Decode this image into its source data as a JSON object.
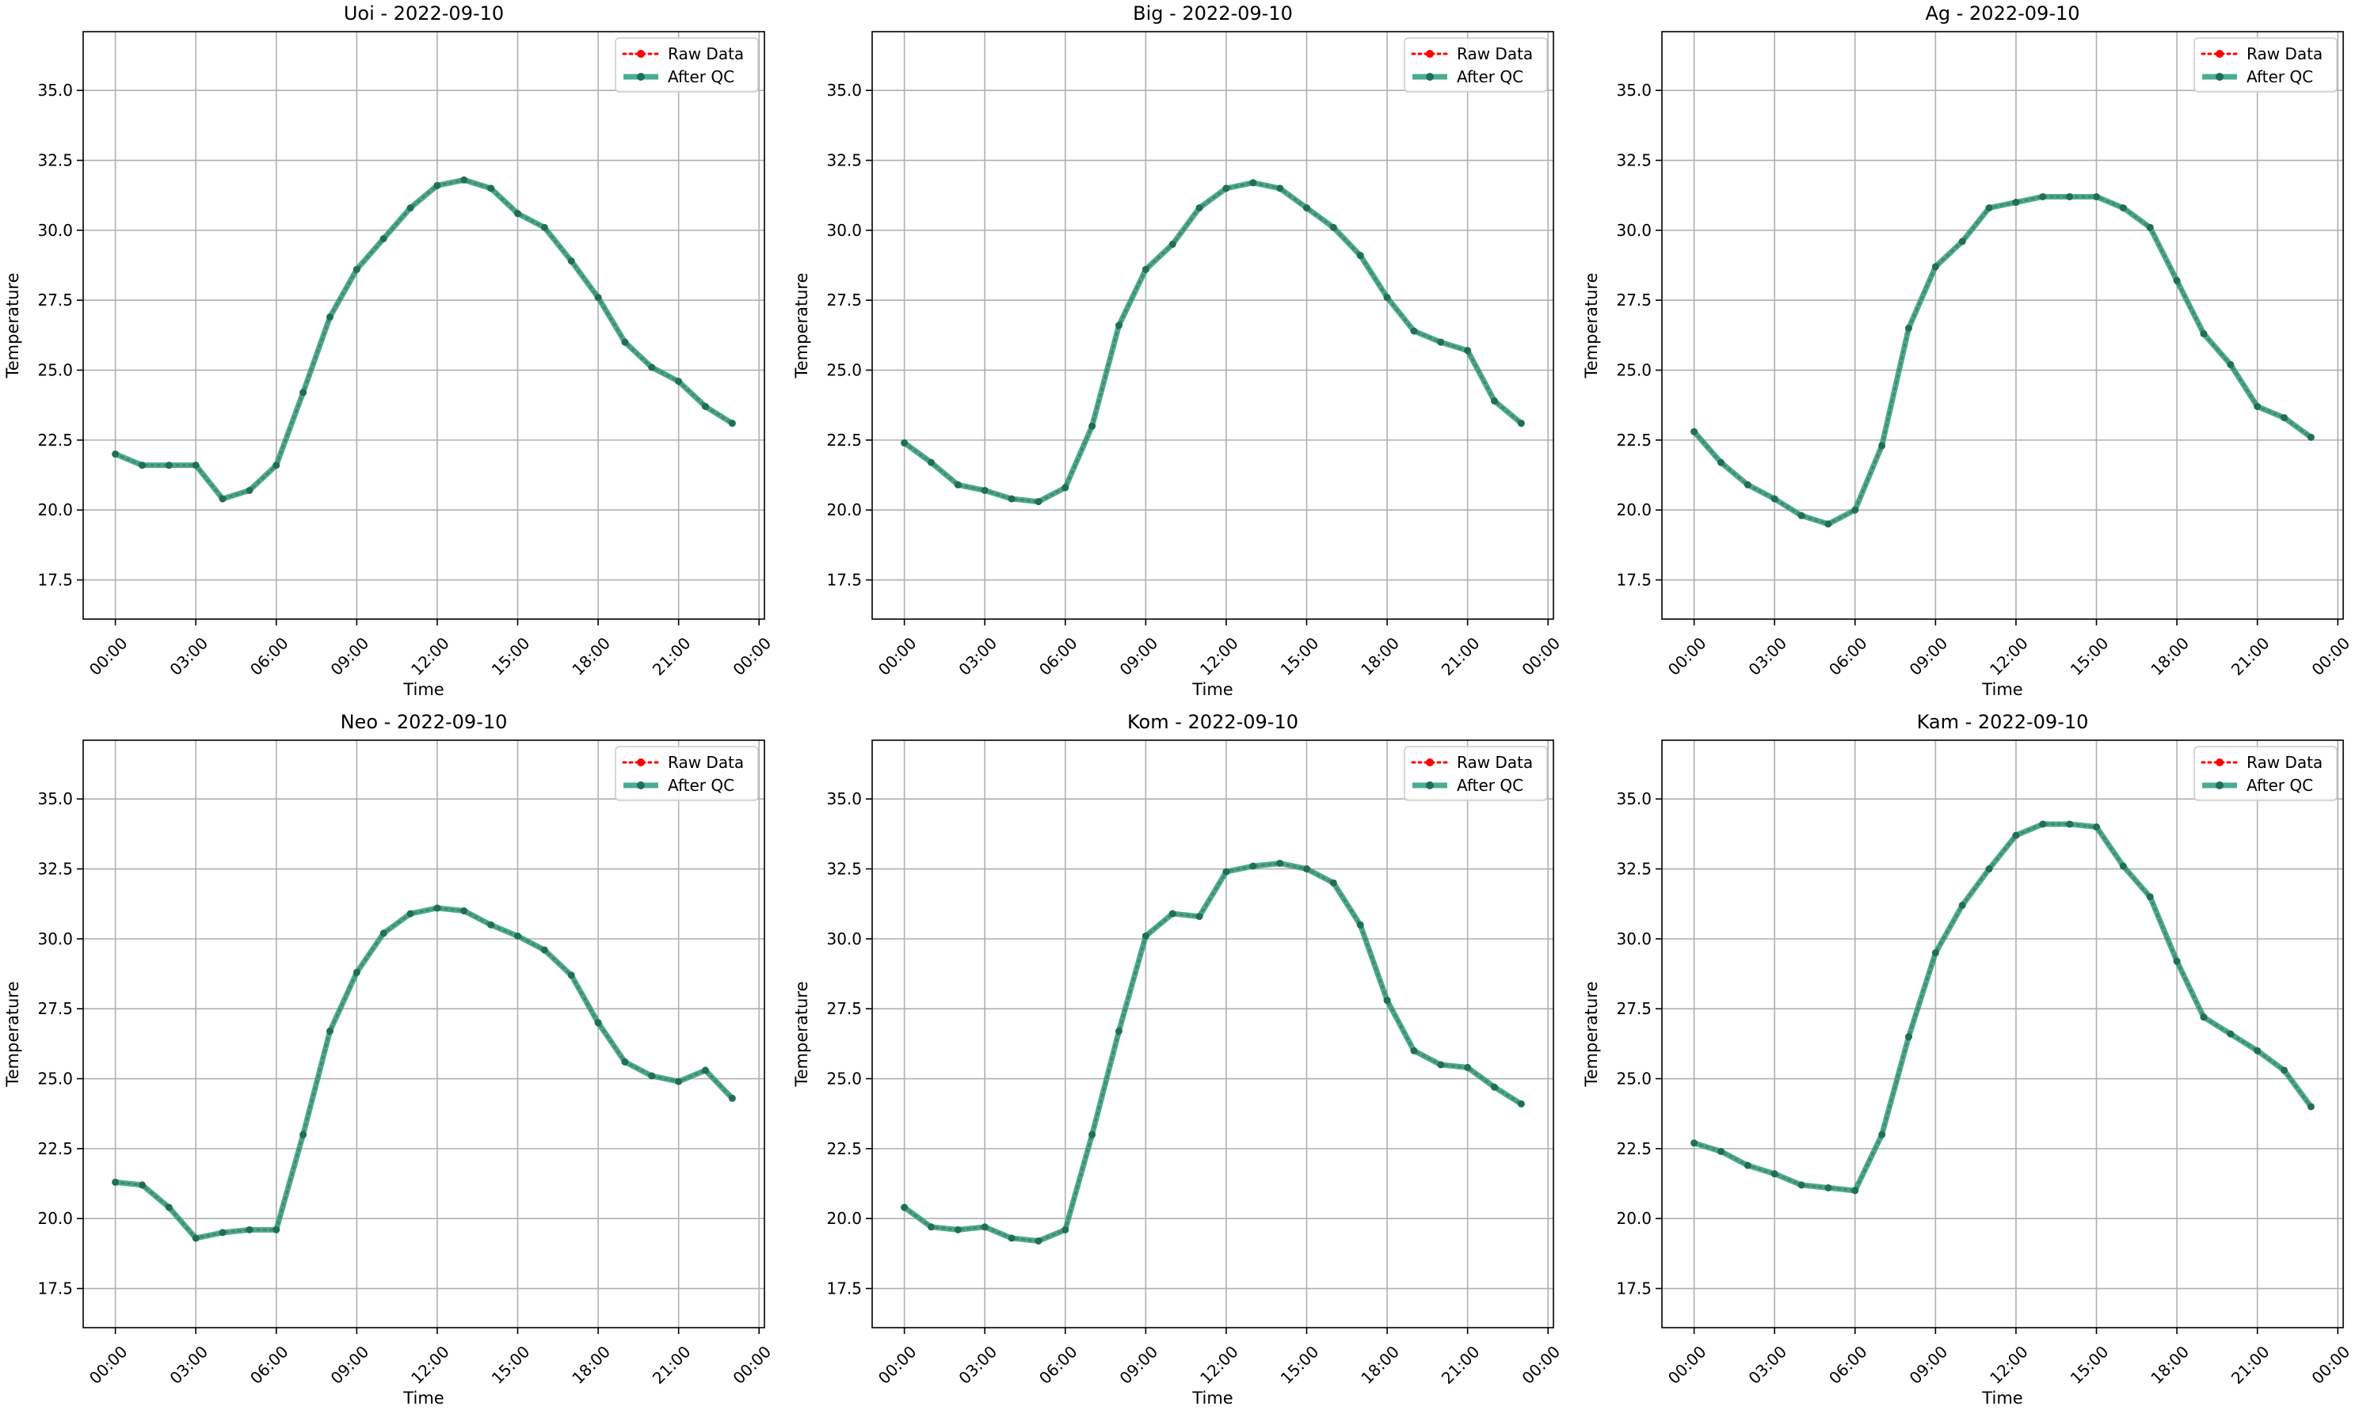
{
  "figure": {
    "legend_labels": [
      "Raw Data",
      "After QC"
    ],
    "colors": {
      "raw": "#ff0000",
      "qc": "#2a9d7f",
      "qc_marker": "#1f6f57",
      "grid": "#b0b0b0",
      "axis": "#000000"
    }
  },
  "chart_data": [
    {
      "type": "line",
      "title": "Uoi - 2022-09-10",
      "xlabel": "Time",
      "ylabel": "Temperature",
      "x_ticks": [
        "00:00",
        "03:00",
        "06:00",
        "09:00",
        "12:00",
        "15:00",
        "18:00",
        "21:00",
        "00:00"
      ],
      "y_ticks": [
        "17.5",
        "20.0",
        "22.5",
        "25.0",
        "27.5",
        "30.0",
        "32.5",
        "35.0"
      ],
      "ylim": [
        16.1,
        37.1
      ],
      "xlim_hours": [
        -1.2,
        24.2
      ],
      "grid": true,
      "legend_position": "top-right",
      "x_hours": [
        0,
        1,
        2,
        3,
        4,
        5,
        6,
        7,
        8,
        9,
        10,
        11,
        12,
        13,
        14,
        15,
        16,
        17,
        18,
        19,
        20,
        21,
        22,
        23
      ],
      "series": [
        {
          "name": "Raw Data",
          "values": [
            22.0,
            21.6,
            21.6,
            21.6,
            20.4,
            20.7,
            21.6,
            24.2,
            26.9,
            28.6,
            29.7,
            30.8,
            31.6,
            31.8,
            31.5,
            30.6,
            30.1,
            28.9,
            27.6,
            26.0,
            25.1,
            24.6,
            23.7,
            23.1
          ]
        },
        {
          "name": "After QC",
          "values": [
            22.0,
            21.6,
            21.6,
            21.6,
            20.4,
            20.7,
            21.6,
            24.2,
            26.9,
            28.6,
            29.7,
            30.8,
            31.6,
            31.8,
            31.5,
            30.6,
            30.1,
            28.9,
            27.6,
            26.0,
            25.1,
            24.6,
            23.7,
            23.1
          ]
        }
      ]
    },
    {
      "type": "line",
      "title": "Big - 2022-09-10",
      "xlabel": "Time",
      "ylabel": "Temperature",
      "x_ticks": [
        "00:00",
        "03:00",
        "06:00",
        "09:00",
        "12:00",
        "15:00",
        "18:00",
        "21:00",
        "00:00"
      ],
      "y_ticks": [
        "17.5",
        "20.0",
        "22.5",
        "25.0",
        "27.5",
        "30.0",
        "32.5",
        "35.0"
      ],
      "ylim": [
        16.1,
        37.1
      ],
      "xlim_hours": [
        -1.2,
        24.2
      ],
      "grid": true,
      "legend_position": "top-right",
      "x_hours": [
        0,
        1,
        2,
        3,
        4,
        5,
        6,
        7,
        8,
        9,
        10,
        11,
        12,
        13,
        14,
        15,
        16,
        17,
        18,
        19,
        20,
        21,
        22,
        23
      ],
      "series": [
        {
          "name": "Raw Data",
          "values": [
            22.4,
            21.7,
            20.9,
            20.7,
            20.4,
            20.3,
            20.8,
            23.0,
            26.6,
            28.6,
            29.5,
            30.8,
            31.5,
            31.7,
            31.5,
            30.8,
            30.1,
            29.1,
            27.6,
            26.4,
            26.0,
            25.7,
            23.9,
            23.1
          ]
        },
        {
          "name": "After QC",
          "values": [
            22.4,
            21.7,
            20.9,
            20.7,
            20.4,
            20.3,
            20.8,
            23.0,
            26.6,
            28.6,
            29.5,
            30.8,
            31.5,
            31.7,
            31.5,
            30.8,
            30.1,
            29.1,
            27.6,
            26.4,
            26.0,
            25.7,
            23.9,
            23.1
          ]
        }
      ]
    },
    {
      "type": "line",
      "title": "Ag - 2022-09-10",
      "xlabel": "Time",
      "ylabel": "Temperature",
      "x_ticks": [
        "00:00",
        "03:00",
        "06:00",
        "09:00",
        "12:00",
        "15:00",
        "18:00",
        "21:00",
        "00:00"
      ],
      "y_ticks": [
        "17.5",
        "20.0",
        "22.5",
        "25.0",
        "27.5",
        "30.0",
        "32.5",
        "35.0"
      ],
      "ylim": [
        16.1,
        37.1
      ],
      "xlim_hours": [
        -1.2,
        24.2
      ],
      "grid": true,
      "legend_position": "top-right",
      "x_hours": [
        0,
        1,
        2,
        3,
        4,
        5,
        6,
        7,
        8,
        9,
        10,
        11,
        12,
        13,
        14,
        15,
        16,
        17,
        18,
        19,
        20,
        21,
        22,
        23
      ],
      "series": [
        {
          "name": "Raw Data",
          "values": [
            22.8,
            21.7,
            20.9,
            20.4,
            19.8,
            19.5,
            20.0,
            22.3,
            26.5,
            28.7,
            29.6,
            30.8,
            31.0,
            31.2,
            31.2,
            31.2,
            30.8,
            30.1,
            28.2,
            26.3,
            25.2,
            23.7,
            23.3,
            22.6
          ]
        },
        {
          "name": "After QC",
          "values": [
            22.8,
            21.7,
            20.9,
            20.4,
            19.8,
            19.5,
            20.0,
            22.3,
            26.5,
            28.7,
            29.6,
            30.8,
            31.0,
            31.2,
            31.2,
            31.2,
            30.8,
            30.1,
            28.2,
            26.3,
            25.2,
            23.7,
            23.3,
            22.6
          ]
        }
      ]
    },
    {
      "type": "line",
      "title": "Neo - 2022-09-10",
      "xlabel": "Time",
      "ylabel": "Temperature",
      "x_ticks": [
        "00:00",
        "03:00",
        "06:00",
        "09:00",
        "12:00",
        "15:00",
        "18:00",
        "21:00",
        "00:00"
      ],
      "y_ticks": [
        "17.5",
        "20.0",
        "22.5",
        "25.0",
        "27.5",
        "30.0",
        "32.5",
        "35.0"
      ],
      "ylim": [
        16.1,
        37.1
      ],
      "xlim_hours": [
        -1.2,
        24.2
      ],
      "grid": true,
      "legend_position": "top-right",
      "x_hours": [
        0,
        1,
        2,
        3,
        4,
        5,
        6,
        7,
        8,
        9,
        10,
        11,
        12,
        13,
        14,
        15,
        16,
        17,
        18,
        19,
        20,
        21,
        22,
        23
      ],
      "series": [
        {
          "name": "Raw Data",
          "values": [
            21.3,
            21.2,
            20.4,
            19.3,
            19.5,
            19.6,
            19.6,
            23.0,
            26.7,
            28.8,
            30.2,
            30.9,
            31.1,
            31.0,
            30.5,
            30.1,
            29.6,
            28.7,
            27.0,
            25.6,
            25.1,
            24.9,
            25.3,
            24.3
          ]
        },
        {
          "name": "After QC",
          "values": [
            21.3,
            21.2,
            20.4,
            19.3,
            19.5,
            19.6,
            19.6,
            23.0,
            26.7,
            28.8,
            30.2,
            30.9,
            31.1,
            31.0,
            30.5,
            30.1,
            29.6,
            28.7,
            27.0,
            25.6,
            25.1,
            24.9,
            25.3,
            24.3
          ]
        }
      ]
    },
    {
      "type": "line",
      "title": "Kom - 2022-09-10",
      "xlabel": "Time",
      "ylabel": "Temperature",
      "x_ticks": [
        "00:00",
        "03:00",
        "06:00",
        "09:00",
        "12:00",
        "15:00",
        "18:00",
        "21:00",
        "00:00"
      ],
      "y_ticks": [
        "17.5",
        "20.0",
        "22.5",
        "25.0",
        "27.5",
        "30.0",
        "32.5",
        "35.0"
      ],
      "ylim": [
        16.1,
        37.1
      ],
      "xlim_hours": [
        -1.2,
        24.2
      ],
      "grid": true,
      "legend_position": "top-right",
      "x_hours": [
        0,
        1,
        2,
        3,
        4,
        5,
        6,
        7,
        8,
        9,
        10,
        11,
        12,
        13,
        14,
        15,
        16,
        17,
        18,
        19,
        20,
        21,
        22,
        23
      ],
      "series": [
        {
          "name": "Raw Data",
          "values": [
            20.4,
            19.7,
            19.6,
            19.7,
            19.3,
            19.2,
            19.6,
            23.0,
            26.7,
            30.1,
            30.9,
            30.8,
            32.4,
            32.6,
            32.7,
            32.5,
            32.0,
            30.5,
            27.8,
            26.0,
            25.5,
            25.4,
            24.7,
            24.1
          ]
        },
        {
          "name": "After QC",
          "values": [
            20.4,
            19.7,
            19.6,
            19.7,
            19.3,
            19.2,
            19.6,
            23.0,
            26.7,
            30.1,
            30.9,
            30.8,
            32.4,
            32.6,
            32.7,
            32.5,
            32.0,
            30.5,
            27.8,
            26.0,
            25.5,
            25.4,
            24.7,
            24.1
          ]
        }
      ]
    },
    {
      "type": "line",
      "title": "Kam - 2022-09-10",
      "xlabel": "Time",
      "ylabel": "Temperature",
      "x_ticks": [
        "00:00",
        "03:00",
        "06:00",
        "09:00",
        "12:00",
        "15:00",
        "18:00",
        "21:00",
        "00:00"
      ],
      "y_ticks": [
        "17.5",
        "20.0",
        "22.5",
        "25.0",
        "27.5",
        "30.0",
        "32.5",
        "35.0"
      ],
      "ylim": [
        16.1,
        37.1
      ],
      "xlim_hours": [
        -1.2,
        24.2
      ],
      "grid": true,
      "legend_position": "top-right",
      "x_hours": [
        0,
        1,
        2,
        3,
        4,
        5,
        6,
        7,
        8,
        9,
        10,
        11,
        12,
        13,
        14,
        15,
        16,
        17,
        18,
        19,
        20,
        21,
        22,
        23
      ],
      "series": [
        {
          "name": "Raw Data",
          "values": [
            22.7,
            22.4,
            21.9,
            21.6,
            21.2,
            21.1,
            21.0,
            23.0,
            26.5,
            29.5,
            31.2,
            32.5,
            33.7,
            34.1,
            34.1,
            34.0,
            32.6,
            31.5,
            29.2,
            27.2,
            26.6,
            26.0,
            25.3,
            24.0
          ]
        },
        {
          "name": "After QC",
          "values": [
            22.7,
            22.4,
            21.9,
            21.6,
            21.2,
            21.1,
            21.0,
            23.0,
            26.5,
            29.5,
            31.2,
            32.5,
            33.7,
            34.1,
            34.1,
            34.0,
            32.6,
            31.5,
            29.2,
            27.2,
            26.6,
            26.0,
            25.3,
            24.0
          ]
        }
      ]
    }
  ]
}
